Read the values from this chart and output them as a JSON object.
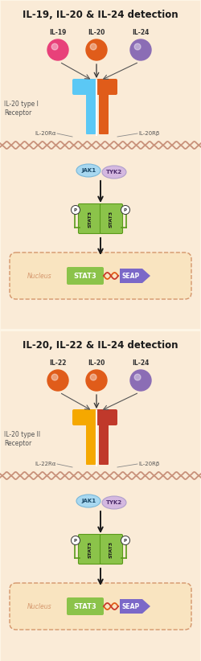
{
  "bg_color": "#fdf5e6",
  "panel_bg": "#faebd7",
  "title1": "IL-19, IL-20 & IL-24 detection",
  "title2": "IL-20, IL-22 & IL-24 detection",
  "cytokine1_labels": [
    "IL-19",
    "IL-20",
    "IL-24"
  ],
  "cytokine2_labels": [
    "IL-22",
    "IL-20",
    "IL-24"
  ],
  "cytokine1_colors": [
    "#e8417a",
    "#e05c1a",
    "#8b6db5"
  ],
  "cytokine2_colors": [
    "#e05c1a",
    "#e05c1a",
    "#8b6db5"
  ],
  "receptor1_left_color": "#5bc8f5",
  "receptor1_right_color": "#e05c1a",
  "receptor2_left_color": "#f5a800",
  "receptor2_right_color": "#c0392b",
  "jak1_color": "#a8d8f0",
  "tyk2_color": "#d4b8e0",
  "stat3_color": "#8bc34a",
  "seap_color": "#7b68c8",
  "nucleus_color": "#f9e4c0",
  "nucleus_border": "#d4956a",
  "membrane_color": "#c8917a",
  "receptor1_label_left": "IL-20Rα",
  "receptor1_label_right": "IL-20Rβ",
  "receptor2_label_left": "IL-22Rα",
  "receptor2_label_right": "IL-20Rβ",
  "receptor_type1": "IL-20 type I\nReceptor",
  "receptor_type2": "IL-20 type II\nReceptor",
  "nucleus_label": "Nucleus"
}
